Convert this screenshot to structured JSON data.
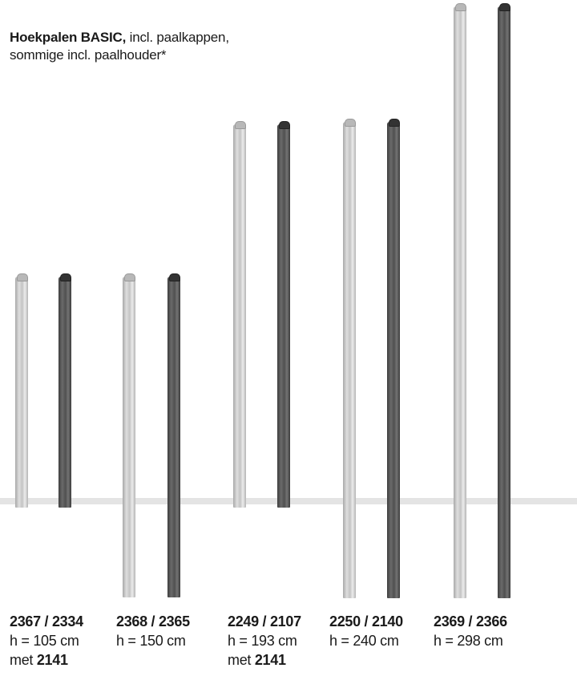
{
  "heading": {
    "bold": "Hoekpalen BASIC,",
    "line1_rest": " incl. paalkappen,",
    "line2": "sommige incl. paalhouder*"
  },
  "colors": {
    "light_post": "#cfcfcf",
    "dark_post": "#555555",
    "ground_line": "#e4e4e4"
  },
  "products": [
    {
      "code": "2367 / 2334",
      "height": "h = 105 cm",
      "extra_prefix": "met ",
      "extra_code": "2141"
    },
    {
      "code": "2368 / 2365",
      "height": "h = 150 cm",
      "extra_prefix": "",
      "extra_code": ""
    },
    {
      "code": "2249 / 2107",
      "height": "h = 193 cm",
      "extra_prefix": "met ",
      "extra_code": "2141"
    },
    {
      "code": "2250 / 2140",
      "height": "h = 240 cm",
      "extra_prefix": "",
      "extra_code": ""
    },
    {
      "code": "2369 / 2366",
      "height": "h = 298 cm",
      "extra_prefix": "",
      "extra_code": ""
    }
  ]
}
